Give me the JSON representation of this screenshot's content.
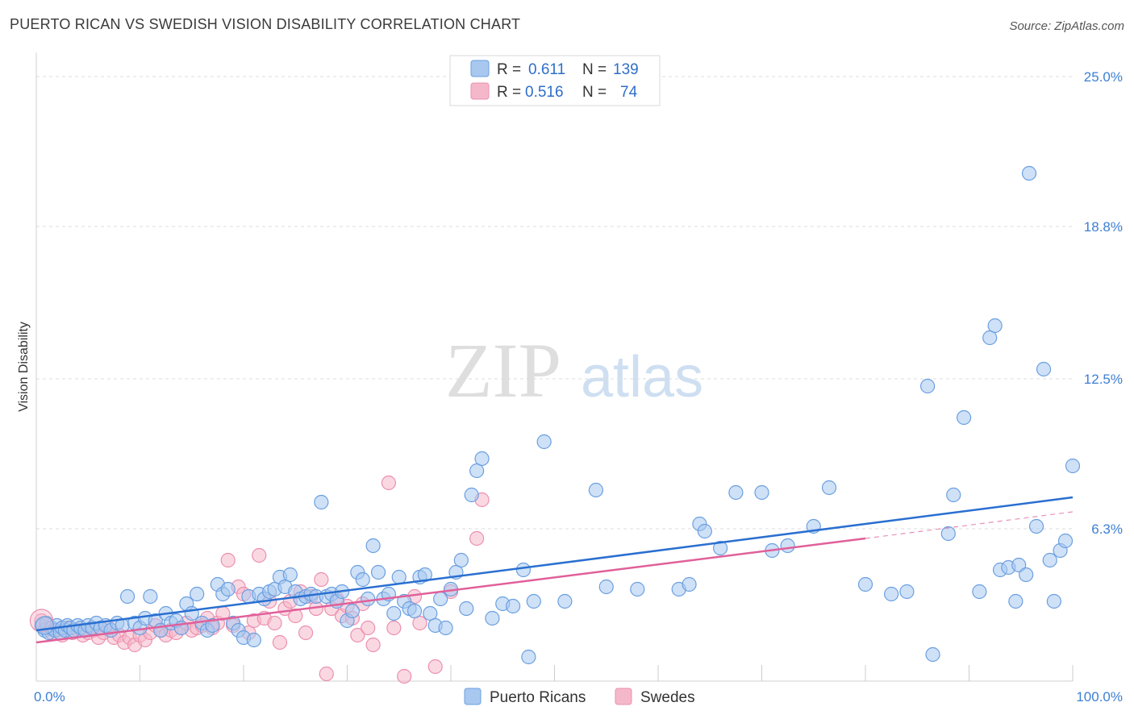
{
  "header": {
    "title": "PUERTO RICAN VS SWEDISH VISION DISABILITY CORRELATION CHART",
    "source": "Source: ZipAtlas.com"
  },
  "watermark": {
    "zip": "ZIP",
    "atlas": "atlas"
  },
  "legend": {
    "rows": [
      {
        "r_label": "R =",
        "r_value": "0.611",
        "n_label": "N =",
        "n_value": "139",
        "color": "#a8c8f0"
      },
      {
        "r_label": "R =",
        "r_value": "0.516",
        "n_label": "N =",
        "n_value": "74",
        "color": "#f5b8cb"
      }
    ]
  },
  "chart_data": {
    "type": "scatter",
    "ylabel": "Vision Disability",
    "xlim": [
      0,
      100
    ],
    "ylim": [
      0,
      26
    ],
    "x_tick_labels": [
      {
        "value": 0,
        "label": "0.0%"
      },
      {
        "value": 100,
        "label": "100.0%"
      }
    ],
    "y_ticks": [
      {
        "value": 6.3,
        "label": "6.3%"
      },
      {
        "value": 12.5,
        "label": "12.5%"
      },
      {
        "value": 18.8,
        "label": "18.8%"
      },
      {
        "value": 25.0,
        "label": "25.0%"
      }
    ],
    "grid": "horizontal dashed",
    "legend_position": "top-center",
    "series": [
      {
        "name": "Puerto Ricans",
        "color": "#6a9fe0",
        "fill": "#a8c8f0",
        "trend": {
          "x": [
            0,
            100
          ],
          "y": [
            2.1,
            7.6
          ],
          "color": "#2a6fd0"
        },
        "points": [
          [
            0.5,
            2.3
          ],
          [
            0.8,
            2.1
          ],
          [
            1.0,
            2.4
          ],
          [
            1.2,
            2.0
          ],
          [
            1.5,
            2.2
          ],
          [
            1.8,
            2.1
          ],
          [
            2.0,
            2.3
          ],
          [
            2.3,
            2.0
          ],
          [
            2.5,
            2.2
          ],
          [
            2.8,
            2.1
          ],
          [
            3.0,
            2.3
          ],
          [
            3.3,
            2.2
          ],
          [
            3.6,
            2.1
          ],
          [
            4.0,
            2.3
          ],
          [
            4.3,
            2.2
          ],
          [
            4.7,
            2.1
          ],
          [
            5.0,
            2.3
          ],
          [
            5.4,
            2.2
          ],
          [
            5.8,
            2.4
          ],
          [
            6.2,
            2.2
          ],
          [
            6.7,
            2.3
          ],
          [
            7.2,
            2.1
          ],
          [
            7.8,
            2.4
          ],
          [
            8.3,
            2.3
          ],
          [
            8.8,
            3.5
          ],
          [
            9.5,
            2.4
          ],
          [
            10.0,
            2.2
          ],
          [
            10.5,
            2.6
          ],
          [
            11.0,
            3.5
          ],
          [
            11.5,
            2.5
          ],
          [
            12.0,
            2.1
          ],
          [
            12.5,
            2.8
          ],
          [
            13.0,
            2.4
          ],
          [
            13.5,
            2.5
          ],
          [
            14.0,
            2.2
          ],
          [
            14.5,
            3.2
          ],
          [
            15.0,
            2.8
          ],
          [
            15.5,
            3.6
          ],
          [
            16.0,
            2.4
          ],
          [
            16.5,
            2.1
          ],
          [
            17.0,
            2.3
          ],
          [
            17.5,
            4.0
          ],
          [
            18.0,
            3.6
          ],
          [
            18.5,
            3.8
          ],
          [
            19.0,
            2.4
          ],
          [
            19.5,
            2.1
          ],
          [
            20.0,
            1.8
          ],
          [
            20.5,
            3.5
          ],
          [
            21.0,
            1.7
          ],
          [
            21.5,
            3.6
          ],
          [
            22.0,
            3.4
          ],
          [
            22.5,
            3.7
          ],
          [
            23.0,
            3.8
          ],
          [
            23.5,
            4.3
          ],
          [
            24.0,
            3.9
          ],
          [
            24.5,
            4.4
          ],
          [
            25.0,
            3.7
          ],
          [
            25.5,
            3.4
          ],
          [
            26.0,
            3.5
          ],
          [
            26.5,
            3.6
          ],
          [
            27.0,
            3.5
          ],
          [
            27.5,
            7.4
          ],
          [
            28.0,
            3.5
          ],
          [
            28.5,
            3.6
          ],
          [
            29.0,
            3.3
          ],
          [
            29.5,
            3.7
          ],
          [
            30.0,
            2.5
          ],
          [
            30.5,
            2.9
          ],
          [
            31.0,
            4.5
          ],
          [
            31.5,
            4.2
          ],
          [
            32.0,
            3.4
          ],
          [
            32.5,
            5.6
          ],
          [
            33.0,
            4.5
          ],
          [
            33.5,
            3.4
          ],
          [
            34.0,
            3.6
          ],
          [
            34.5,
            2.8
          ],
          [
            35.0,
            4.3
          ],
          [
            35.5,
            3.3
          ],
          [
            36.0,
            3.0
          ],
          [
            36.5,
            2.9
          ],
          [
            37.0,
            4.3
          ],
          [
            37.5,
            4.4
          ],
          [
            38.0,
            2.8
          ],
          [
            38.5,
            2.3
          ],
          [
            39.0,
            3.4
          ],
          [
            39.5,
            2.2
          ],
          [
            40.0,
            3.8
          ],
          [
            40.5,
            4.5
          ],
          [
            41.0,
            5.0
          ],
          [
            41.5,
            3.0
          ],
          [
            42.0,
            7.7
          ],
          [
            42.5,
            8.7
          ],
          [
            43.0,
            9.2
          ],
          [
            44.0,
            2.6
          ],
          [
            45.0,
            3.2
          ],
          [
            46.0,
            3.1
          ],
          [
            47.0,
            4.6
          ],
          [
            47.5,
            1.0
          ],
          [
            48.0,
            3.3
          ],
          [
            49.0,
            9.9
          ],
          [
            51.0,
            3.3
          ],
          [
            54.0,
            7.9
          ],
          [
            55.0,
            3.9
          ],
          [
            58.0,
            3.8
          ],
          [
            62.0,
            3.8
          ],
          [
            63.0,
            4.0
          ],
          [
            64.0,
            6.5
          ],
          [
            64.5,
            6.2
          ],
          [
            66.0,
            5.5
          ],
          [
            67.5,
            7.8
          ],
          [
            70.0,
            7.8
          ],
          [
            71.0,
            5.4
          ],
          [
            72.5,
            5.6
          ],
          [
            75.0,
            6.4
          ],
          [
            76.5,
            8.0
          ],
          [
            80.0,
            4.0
          ],
          [
            82.5,
            3.6
          ],
          [
            84.0,
            3.7
          ],
          [
            86.0,
            12.2
          ],
          [
            86.5,
            1.1
          ],
          [
            88.0,
            6.1
          ],
          [
            88.5,
            7.7
          ],
          [
            89.5,
            10.9
          ],
          [
            91.0,
            3.7
          ],
          [
            92.0,
            14.2
          ],
          [
            92.5,
            14.7
          ],
          [
            93.0,
            4.6
          ],
          [
            93.8,
            4.7
          ],
          [
            94.5,
            3.3
          ],
          [
            94.8,
            4.8
          ],
          [
            95.5,
            4.4
          ],
          [
            95.8,
            21.0
          ],
          [
            96.5,
            6.4
          ],
          [
            97.2,
            12.9
          ],
          [
            97.8,
            5.0
          ],
          [
            98.2,
            3.3
          ],
          [
            98.8,
            5.4
          ],
          [
            99.3,
            5.8
          ],
          [
            100.0,
            8.9
          ]
        ]
      },
      {
        "name": "Swedes",
        "color": "#ec8fae",
        "fill": "#f5b8cb",
        "trend": {
          "x": [
            0,
            80
          ],
          "y": [
            1.6,
            5.9
          ],
          "color": "#e0609a"
        },
        "trend_extension": {
          "x": [
            80,
            100
          ],
          "y": [
            5.9,
            7.0
          ]
        },
        "points": [
          [
            0.5,
            2.5
          ],
          [
            1.0,
            2.2
          ],
          [
            1.5,
            2.0
          ],
          [
            2.0,
            2.1
          ],
          [
            2.5,
            1.9
          ],
          [
            3.0,
            2.2
          ],
          [
            3.5,
            2.0
          ],
          [
            4.0,
            2.1
          ],
          [
            4.5,
            1.9
          ],
          [
            5.0,
            2.0
          ],
          [
            5.5,
            2.1
          ],
          [
            6.0,
            1.8
          ],
          [
            6.5,
            2.0
          ],
          [
            7.0,
            2.2
          ],
          [
            7.5,
            1.8
          ],
          [
            8.0,
            1.9
          ],
          [
            8.5,
            1.6
          ],
          [
            9.0,
            1.8
          ],
          [
            9.5,
            1.5
          ],
          [
            10.0,
            1.9
          ],
          [
            10.5,
            1.7
          ],
          [
            11.0,
            2.0
          ],
          [
            11.5,
            2.3
          ],
          [
            12.0,
            2.1
          ],
          [
            12.5,
            1.9
          ],
          [
            13.0,
            2.1
          ],
          [
            13.5,
            2.0
          ],
          [
            14.0,
            2.2
          ],
          [
            14.5,
            2.4
          ],
          [
            15.0,
            2.1
          ],
          [
            15.5,
            2.2
          ],
          [
            16.0,
            2.3
          ],
          [
            16.5,
            2.6
          ],
          [
            17.0,
            2.2
          ],
          [
            17.5,
            2.4
          ],
          [
            18.0,
            2.8
          ],
          [
            18.5,
            5.0
          ],
          [
            19.0,
            2.3
          ],
          [
            19.5,
            3.9
          ],
          [
            20.0,
            3.6
          ],
          [
            20.5,
            2.0
          ],
          [
            21.0,
            2.5
          ],
          [
            21.5,
            5.2
          ],
          [
            22.0,
            2.6
          ],
          [
            22.5,
            3.3
          ],
          [
            23.0,
            2.4
          ],
          [
            23.5,
            1.6
          ],
          [
            24.0,
            3.0
          ],
          [
            24.5,
            3.3
          ],
          [
            25.0,
            2.7
          ],
          [
            25.5,
            3.7
          ],
          [
            26.0,
            2.0
          ],
          [
            26.5,
            3.5
          ],
          [
            27.0,
            3.0
          ],
          [
            27.5,
            4.2
          ],
          [
            28.0,
            0.3
          ],
          [
            28.5,
            3.0
          ],
          [
            29.0,
            3.4
          ],
          [
            29.5,
            2.7
          ],
          [
            30.0,
            3.1
          ],
          [
            30.5,
            2.6
          ],
          [
            31.0,
            1.9
          ],
          [
            31.5,
            3.2
          ],
          [
            32.0,
            2.2
          ],
          [
            32.5,
            1.5
          ],
          [
            34.0,
            8.2
          ],
          [
            34.5,
            2.2
          ],
          [
            35.5,
            0.2
          ],
          [
            36.5,
            3.5
          ],
          [
            37.0,
            2.4
          ],
          [
            38.5,
            0.6
          ],
          [
            40.0,
            3.7
          ],
          [
            42.5,
            5.9
          ],
          [
            43.0,
            7.5
          ]
        ]
      }
    ]
  },
  "bottom_legend": {
    "items": [
      {
        "label": "Puerto Ricans",
        "color": "#a8c8f0"
      },
      {
        "label": "Swedes",
        "color": "#f5b8cb"
      }
    ]
  }
}
